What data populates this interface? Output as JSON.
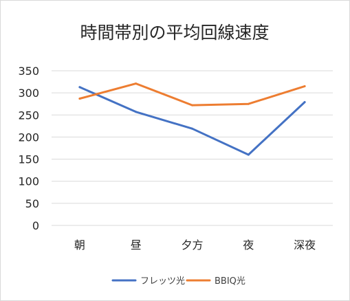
{
  "chart_data": {
    "type": "line",
    "title": "時間帯別の平均回線速度",
    "xlabel": "",
    "ylabel": "",
    "categories": [
      "朝",
      "昼",
      "夕方",
      "夜",
      "深夜"
    ],
    "yticks": [
      "0",
      "50",
      "100",
      "150",
      "200",
      "250",
      "300",
      "350"
    ],
    "ylim": [
      0,
      350
    ],
    "grid": true,
    "legend_position": "bottom",
    "series": [
      {
        "name": "フレッツ光",
        "values": [
          313,
          257,
          219,
          160,
          279
        ],
        "color": "#4472C4"
      },
      {
        "name": "BBIQ光",
        "values": [
          287,
          321,
          272,
          275,
          315
        ],
        "color": "#ED7D31"
      }
    ]
  }
}
